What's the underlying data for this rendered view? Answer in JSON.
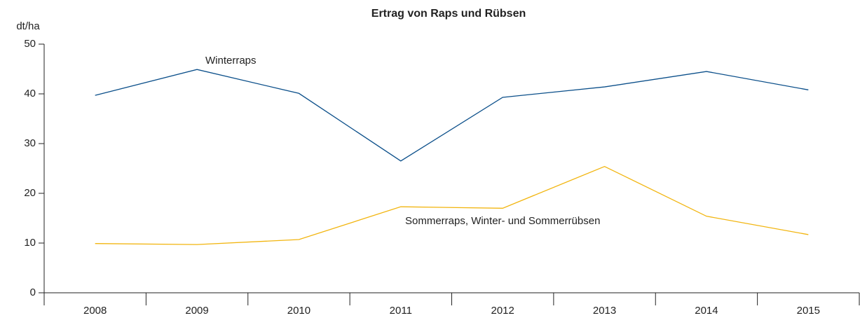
{
  "chart_data": {
    "type": "line",
    "title": "Ertrag von Raps und Rübsen",
    "y_label": "dt/ha",
    "categories": [
      "2008",
      "2009",
      "2010",
      "2011",
      "2012",
      "2013",
      "2014",
      "2015"
    ],
    "series": [
      {
        "name": "Winterraps",
        "color": "#0b4f8a",
        "values": [
          39.7,
          44.9,
          40.1,
          26.5,
          39.3,
          41.4,
          44.5,
          40.8
        ]
      },
      {
        "name": "Sommerraps, Winter- und Sommerrübsen",
        "color": "#f2b50f",
        "values": [
          9.9,
          9.7,
          10.7,
          17.3,
          17.0,
          25.4,
          15.4,
          11.7
        ]
      }
    ],
    "ylim": [
      0,
      50
    ],
    "yticks": [
      0,
      10,
      20,
      30,
      40,
      50
    ],
    "grid": false
  }
}
